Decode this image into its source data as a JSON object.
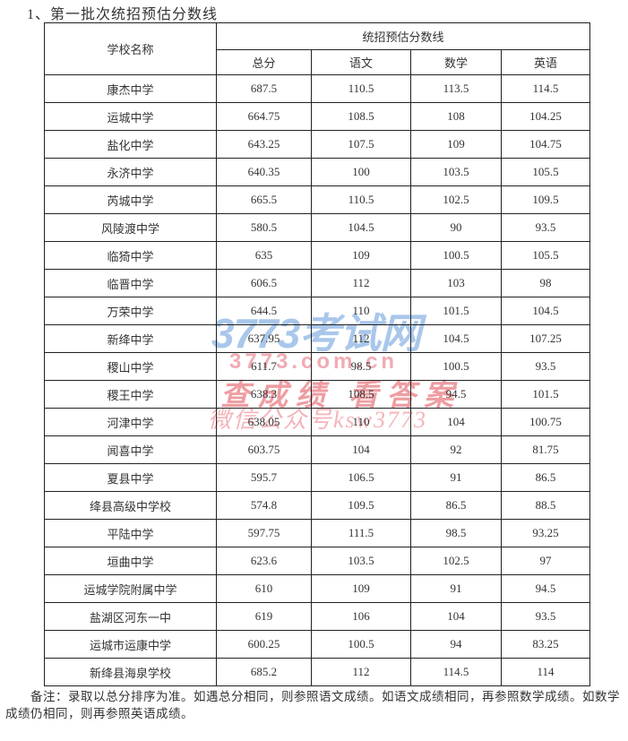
{
  "page": {
    "title": "1、第一批次统招预估分数线",
    "note": "备注：录取以总分排序为准。如遇总分相同，则参照语文成绩。如语文成绩相同，再参照数学成绩。如数学成绩仍相同，则再参照英语成绩。"
  },
  "table": {
    "header": {
      "school_col": "学校名称",
      "group": "统招预估分数线",
      "sub_cols": [
        "总分",
        "语文",
        "数学",
        "英语"
      ]
    },
    "rows": [
      {
        "school": "康杰中学",
        "total": "687.5",
        "chinese": "110.5",
        "math": "113.5",
        "english": "114.5"
      },
      {
        "school": "运城中学",
        "total": "664.75",
        "chinese": "108.5",
        "math": "108",
        "english": "104.25"
      },
      {
        "school": "盐化中学",
        "total": "643.25",
        "chinese": "107.5",
        "math": "109",
        "english": "104.75"
      },
      {
        "school": "永济中学",
        "total": "640.35",
        "chinese": "100",
        "math": "103.5",
        "english": "105.5"
      },
      {
        "school": "芮城中学",
        "total": "665.5",
        "chinese": "110.5",
        "math": "102.5",
        "english": "109.5"
      },
      {
        "school": "风陵渡中学",
        "total": "580.5",
        "chinese": "104.5",
        "math": "90",
        "english": "93.5"
      },
      {
        "school": "临猗中学",
        "total": "635",
        "chinese": "109",
        "math": "100.5",
        "english": "105.5"
      },
      {
        "school": "临晋中学",
        "total": "606.5",
        "chinese": "112",
        "math": "103",
        "english": "98"
      },
      {
        "school": "万荣中学",
        "total": "644.5",
        "chinese": "110",
        "math": "101.5",
        "english": "104.5"
      },
      {
        "school": "新绛中学",
        "total": "637.95",
        "chinese": "112",
        "math": "104.5",
        "english": "107.25"
      },
      {
        "school": "稷山中学",
        "total": "611.7",
        "chinese": "98.5",
        "math": "100.5",
        "english": "93.5"
      },
      {
        "school": "稷王中学",
        "total": "638.3",
        "chinese": "108.5",
        "math": "94.5",
        "english": "101.5"
      },
      {
        "school": "河津中学",
        "total": "638.05",
        "chinese": "110",
        "math": "104",
        "english": "100.75"
      },
      {
        "school": "闻喜中学",
        "total": "603.75",
        "chinese": "104",
        "math": "92",
        "english": "81.75"
      },
      {
        "school": "夏县中学",
        "total": "595.7",
        "chinese": "106.5",
        "math": "91",
        "english": "86.5"
      },
      {
        "school": "绛县高级中学校",
        "total": "574.8",
        "chinese": "109.5",
        "math": "86.5",
        "english": "88.5"
      },
      {
        "school": "平陆中学",
        "total": "597.75",
        "chinese": "111.5",
        "math": "98.5",
        "english": "93.25"
      },
      {
        "school": "垣曲中学",
        "total": "623.6",
        "chinese": "103.5",
        "math": "102.5",
        "english": "97"
      },
      {
        "school": "运城学院附属中学",
        "total": "610",
        "chinese": "109",
        "math": "91",
        "english": "94.5"
      },
      {
        "school": "盐湖区河东一中",
        "total": "619",
        "chinese": "106",
        "math": "104",
        "english": "93.5"
      },
      {
        "school": "运城市运康中学",
        "total": "600.25",
        "chinese": "100.5",
        "math": "94",
        "english": "83.25"
      },
      {
        "school": "新绛县海泉学校",
        "total": "685.2",
        "chinese": "112",
        "math": "114.5",
        "english": "114"
      }
    ]
  },
  "watermark": {
    "site_name": "3773考试网",
    "domain": "3773.com.cn",
    "slogan": "查成绩 看答案",
    "wechat": "微信公众号ksw3773",
    "blue_color": "#a9c7eb",
    "pink_color": "#f2abb3",
    "red_color": "#ee9da2"
  },
  "colors": {
    "text": "#333333",
    "border": "#222222",
    "background": "#ffffff"
  }
}
